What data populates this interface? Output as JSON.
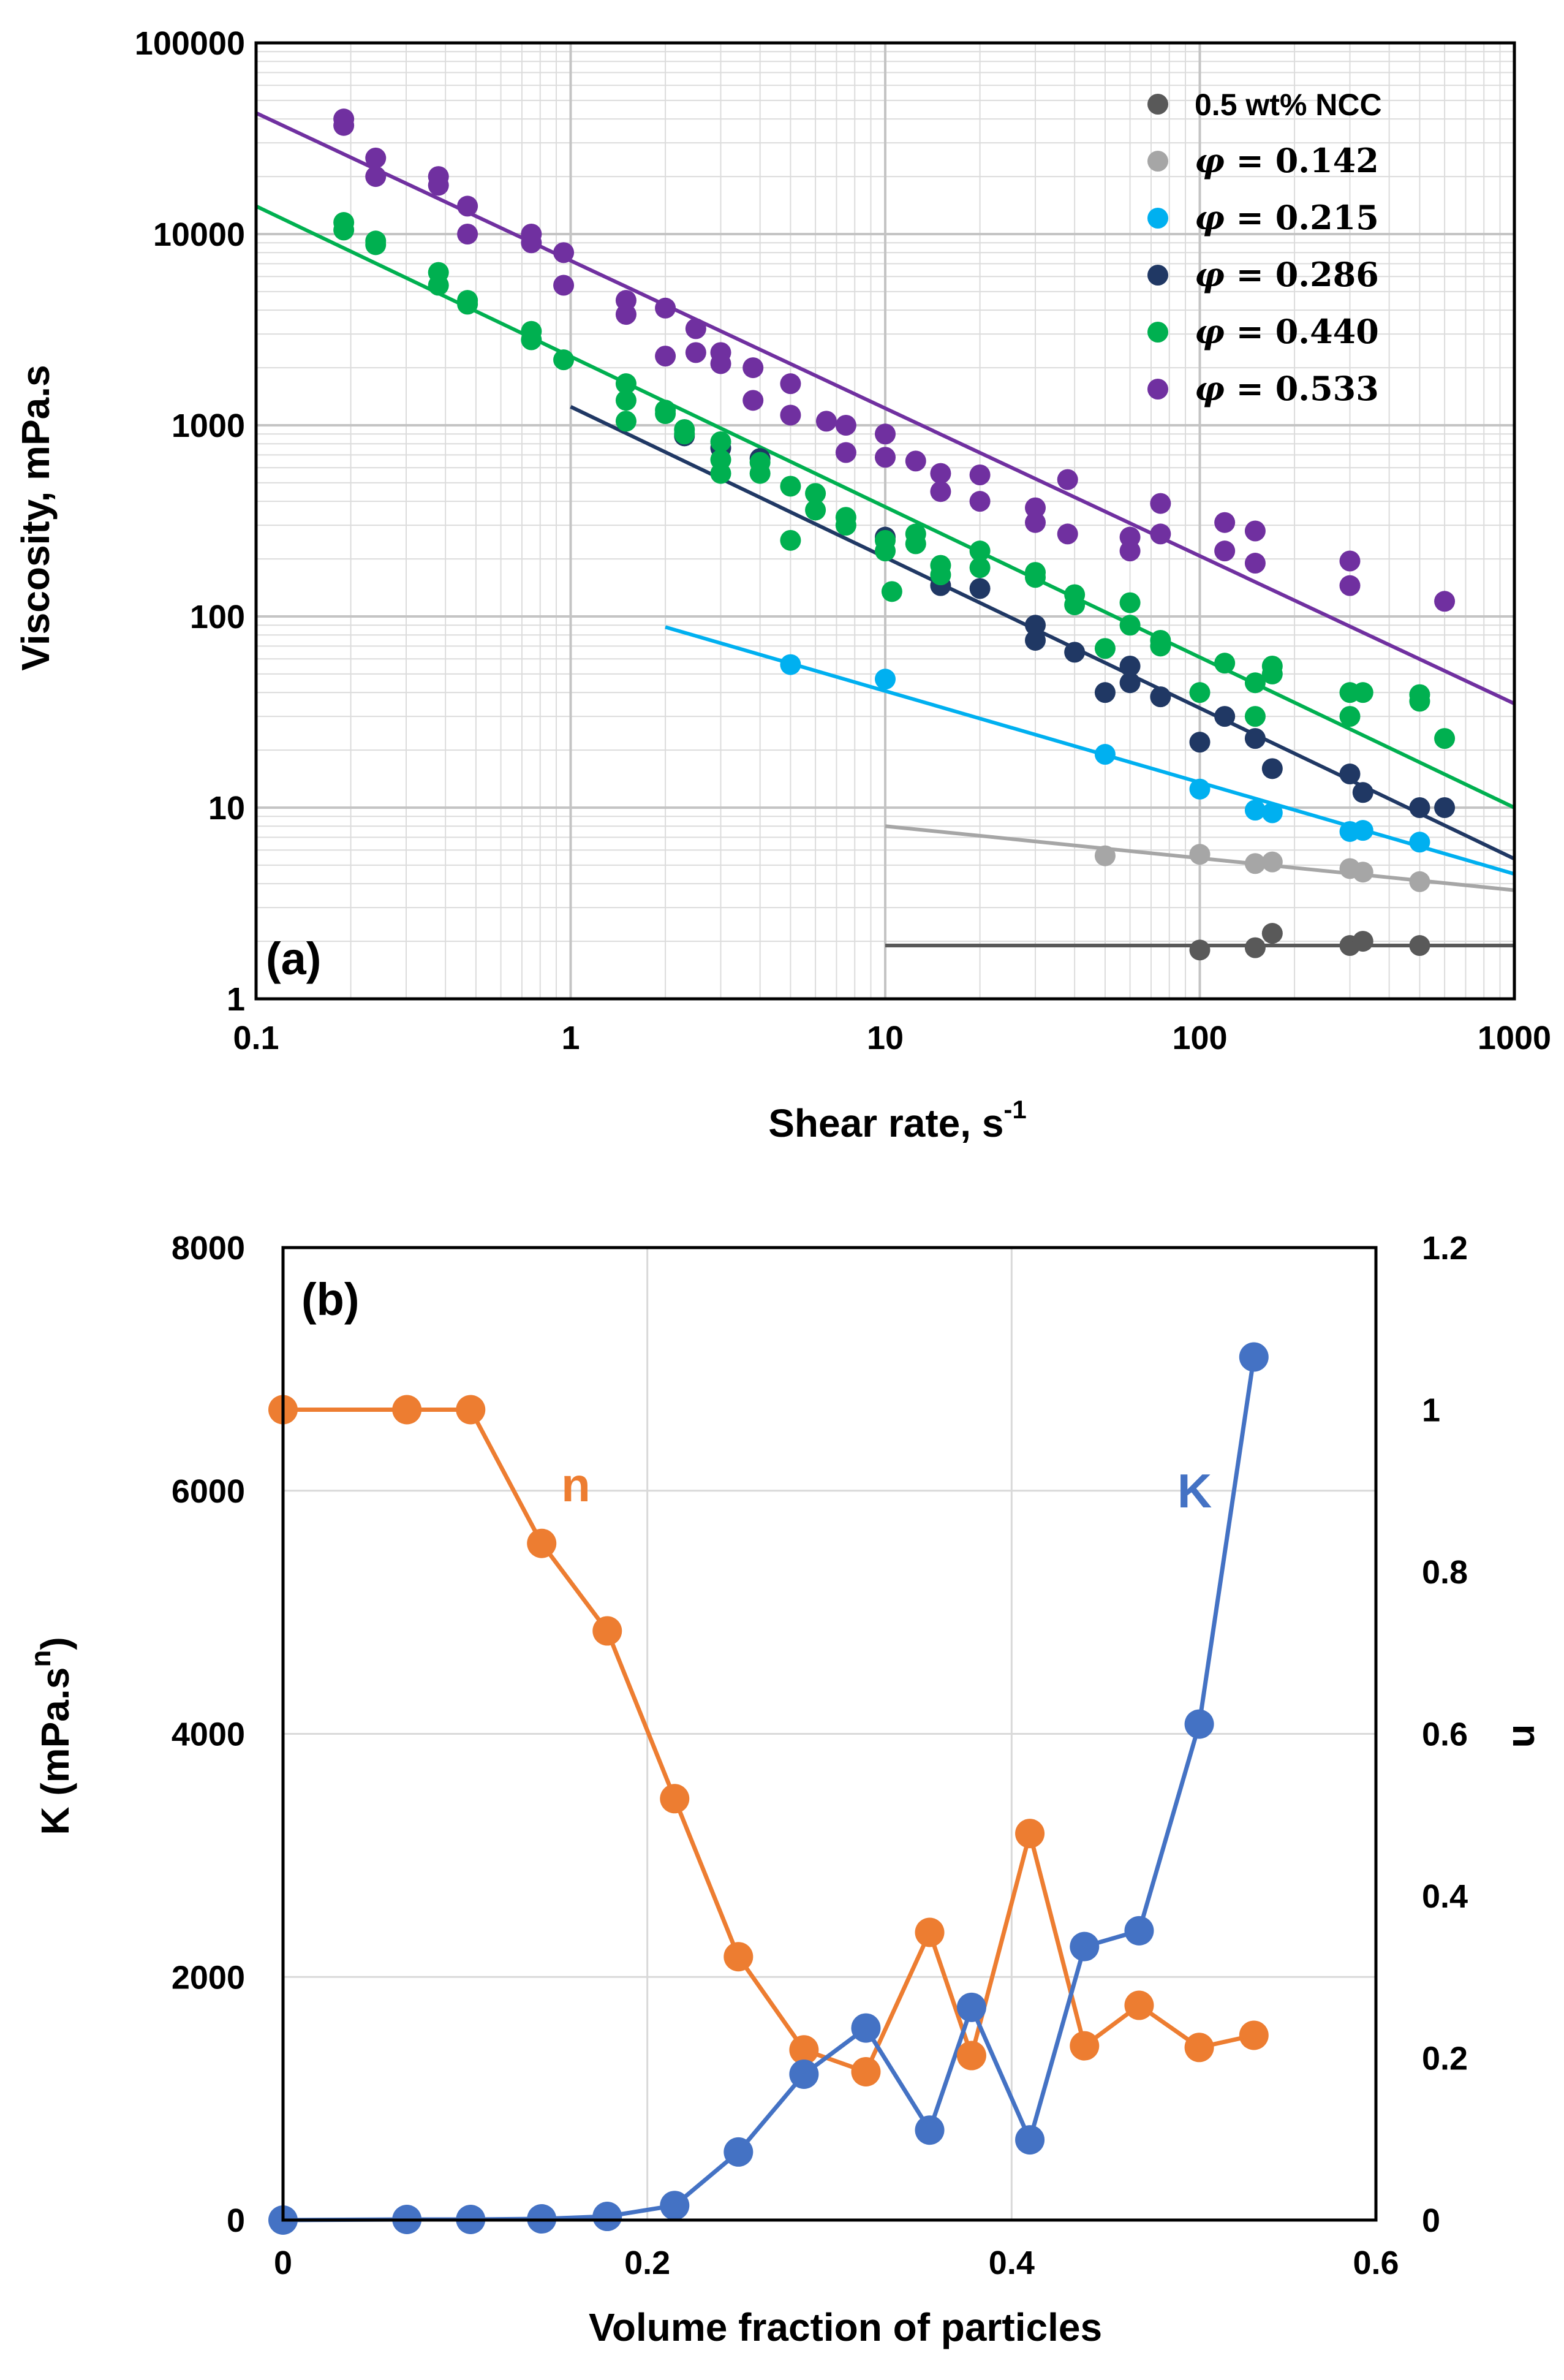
{
  "chart_data": [
    {
      "type": "scatter",
      "panel_label": "(a)",
      "xlabel": "Shear rate, s",
      "xlabel_sup": "-1",
      "ylabel": "Viscosity, mPa.s",
      "xscale": "log",
      "yscale": "log",
      "xlim": [
        0.1,
        1000
      ],
      "ylim": [
        1,
        100000
      ],
      "x_tick_labels": [
        "0.1",
        "1",
        "10",
        "100",
        "1000"
      ],
      "y_tick_labels": [
        "1",
        "10",
        "100",
        "1000",
        "10000",
        "100000"
      ],
      "grid": true,
      "legend_position": "top-right",
      "series": [
        {
          "name": "0.5 wt% NCC",
          "label_prefix": "",
          "label_value": "0.5 wt% NCC",
          "color": "#595959",
          "points": [
            [
              100,
              1.8
            ],
            [
              150,
              1.85
            ],
            [
              170,
              2.2
            ],
            [
              300,
              1.9
            ],
            [
              330,
              2.0
            ],
            [
              500,
              1.9
            ]
          ],
          "fit": [
            [
              10,
              1.9
            ],
            [
              1000,
              1.9
            ]
          ]
        },
        {
          "name": "φ = 0.142",
          "label_prefix": "φ",
          "label_value": " = 0.142",
          "color": "#a6a6a6",
          "points": [
            [
              50,
              5.6
            ],
            [
              100,
              5.7
            ],
            [
              150,
              5.1
            ],
            [
              170,
              5.2
            ],
            [
              300,
              4.8
            ],
            [
              330,
              4.6
            ],
            [
              500,
              4.1
            ]
          ],
          "fit": [
            [
              10,
              8
            ],
            [
              1000,
              3.7
            ]
          ]
        },
        {
          "name": "φ = 0.215",
          "label_prefix": "φ",
          "label_value": " = 0.215",
          "color": "#00b0f0",
          "points": [
            [
              5,
              56
            ],
            [
              10,
              47
            ],
            [
              50,
              19
            ],
            [
              100,
              12.5
            ],
            [
              150,
              9.7
            ],
            [
              170,
              9.4
            ],
            [
              300,
              7.5
            ],
            [
              330,
              7.6
            ],
            [
              500,
              6.6
            ]
          ],
          "fit": [
            [
              2,
              88
            ],
            [
              1000,
              4.5
            ]
          ]
        },
        {
          "name": "φ = 0.286",
          "label_prefix": "φ",
          "label_value": " = 0.286",
          "color": "#203864",
          "points": [
            [
              2.3,
              880
            ],
            [
              3,
              760
            ],
            [
              4,
              670
            ],
            [
              10,
              260
            ],
            [
              15,
              145
            ],
            [
              20,
              140
            ],
            [
              30,
              75
            ],
            [
              30,
              90
            ],
            [
              40,
              65
            ],
            [
              50,
              40
            ],
            [
              60,
              55
            ],
            [
              60,
              45
            ],
            [
              75,
              38
            ],
            [
              100,
              22
            ],
            [
              120,
              30
            ],
            [
              150,
              23
            ],
            [
              170,
              16
            ],
            [
              300,
              15
            ],
            [
              330,
              12
            ],
            [
              500,
              10
            ],
            [
              600,
              10
            ]
          ],
          "fit": [
            [
              1,
              1250
            ],
            [
              1000,
              5.4
            ]
          ]
        },
        {
          "name": "φ = 0.440",
          "label_prefix": "φ",
          "label_value": " = 0.440",
          "color": "#00b050",
          "points": [
            [
              0.19,
              11500
            ],
            [
              0.19,
              10500
            ],
            [
              0.24,
              9200
            ],
            [
              0.24,
              8800
            ],
            [
              0.38,
              6300
            ],
            [
              0.38,
              5400
            ],
            [
              0.47,
              4500
            ],
            [
              0.47,
              4300
            ],
            [
              0.75,
              3100
            ],
            [
              0.75,
              2800
            ],
            [
              0.95,
              2200
            ],
            [
              1.5,
              1650
            ],
            [
              1.5,
              1350
            ],
            [
              1.5,
              1050
            ],
            [
              2,
              1200
            ],
            [
              2,
              1150
            ],
            [
              2.3,
              950
            ],
            [
              2.3,
              900
            ],
            [
              3,
              820
            ],
            [
              3,
              660
            ],
            [
              3,
              560
            ],
            [
              4,
              640
            ],
            [
              4,
              560
            ],
            [
              5,
              480
            ],
            [
              5,
              250
            ],
            [
              6,
              440
            ],
            [
              6,
              360
            ],
            [
              7.5,
              330
            ],
            [
              7.5,
              300
            ],
            [
              10,
              250
            ],
            [
              10,
              220
            ],
            [
              10.5,
              135
            ],
            [
              12.5,
              270
            ],
            [
              12.5,
              240
            ],
            [
              15,
              185
            ],
            [
              15,
              165
            ],
            [
              20,
              220
            ],
            [
              20,
              180
            ],
            [
              30,
              170
            ],
            [
              30,
              160
            ],
            [
              40,
              130
            ],
            [
              40,
              115
            ],
            [
              50,
              68
            ],
            [
              60,
              118
            ],
            [
              60,
              90
            ],
            [
              75,
              75
            ],
            [
              75,
              70
            ],
            [
              100,
              40
            ],
            [
              120,
              57
            ],
            [
              150,
              45
            ],
            [
              150,
              30
            ],
            [
              170,
              55
            ],
            [
              170,
              50
            ],
            [
              300,
              40
            ],
            [
              300,
              30
            ],
            [
              330,
              40
            ],
            [
              500,
              39
            ],
            [
              500,
              36
            ],
            [
              600,
              23
            ]
          ],
          "fit": [
            [
              0.1,
              14000
            ],
            [
              1000,
              10
            ]
          ]
        },
        {
          "name": "φ = 0.533",
          "label_prefix": "φ",
          "label_value": " = 0.533",
          "color": "#7030a0",
          "points": [
            [
              0.19,
              40000
            ],
            [
              0.19,
              37000
            ],
            [
              0.24,
              25000
            ],
            [
              0.24,
              20000
            ],
            [
              0.38,
              20000
            ],
            [
              0.38,
              18000
            ],
            [
              0.47,
              14000
            ],
            [
              0.47,
              10000
            ],
            [
              0.75,
              10000
            ],
            [
              0.75,
              9000
            ],
            [
              0.95,
              8000
            ],
            [
              0.95,
              5400
            ],
            [
              1.5,
              4500
            ],
            [
              1.5,
              3800
            ],
            [
              2,
              4100
            ],
            [
              2,
              2300
            ],
            [
              2.5,
              3200
            ],
            [
              2.5,
              2400
            ],
            [
              3,
              2400
            ],
            [
              3,
              2100
            ],
            [
              3.8,
              2000
            ],
            [
              3.8,
              1350
            ],
            [
              5,
              1650
            ],
            [
              5,
              1130
            ],
            [
              6.5,
              1050
            ],
            [
              7.5,
              1000
            ],
            [
              7.5,
              720
            ],
            [
              10,
              900
            ],
            [
              10,
              680
            ],
            [
              12.5,
              650
            ],
            [
              15,
              560
            ],
            [
              15,
              450
            ],
            [
              20,
              550
            ],
            [
              20,
              400
            ],
            [
              30,
              370
            ],
            [
              30,
              310
            ],
            [
              38,
              520
            ],
            [
              38,
              270
            ],
            [
              60,
              260
            ],
            [
              60,
              220
            ],
            [
              75,
              390
            ],
            [
              75,
              270
            ],
            [
              120,
              310
            ],
            [
              120,
              220
            ],
            [
              150,
              280
            ],
            [
              150,
              190
            ],
            [
              300,
              195
            ],
            [
              300,
              145
            ],
            [
              600,
              120
            ]
          ],
          "fit": [
            [
              0.1,
              43000
            ],
            [
              1000,
              35
            ]
          ]
        }
      ]
    },
    {
      "type": "line",
      "panel_label": "(b)",
      "xlabel": "Volume fraction of particles",
      "ylabel_left": "K (mPa.s",
      "ylabel_left_sup": "n",
      "ylabel_left_close": ")",
      "ylabel_right": "n",
      "xlim": [
        0,
        0.6
      ],
      "ylim_left": [
        0,
        8000
      ],
      "ylim_right": [
        0,
        1.2
      ],
      "x_tick_labels": [
        "0",
        "0.2",
        "0.4",
        "0.6"
      ],
      "y_left_tick_labels": [
        "0",
        "2000",
        "4000",
        "6000",
        "8000"
      ],
      "y_right_tick_labels": [
        "0",
        "0.2",
        "0.4",
        "0.6",
        "0.8",
        "1",
        "1.2"
      ],
      "grid": true,
      "series": [
        {
          "name": "K",
          "axis": "left",
          "color": "#4472c4",
          "x": [
            0,
            0.068,
            0.103,
            0.142,
            0.178,
            0.215,
            0.25,
            0.286,
            0.32,
            0.355,
            0.378,
            0.41,
            0.44,
            0.47,
            0.503,
            0.533
          ],
          "values": [
            0,
            5,
            5,
            10,
            30,
            120,
            560,
            1200,
            1580,
            740,
            1750,
            660,
            2250,
            2380,
            4080,
            7100
          ]
        },
        {
          "name": "n",
          "axis": "right",
          "color": "#ed7d31",
          "x": [
            0,
            0.068,
            0.103,
            0.142,
            0.178,
            0.215,
            0.25,
            0.286,
            0.32,
            0.355,
            0.378,
            0.41,
            0.44,
            0.47,
            0.503,
            0.533
          ],
          "values": [
            1.0,
            1.0,
            1.0,
            0.835,
            0.727,
            0.52,
            0.325,
            0.21,
            0.183,
            0.355,
            0.203,
            0.477,
            0.215,
            0.265,
            0.213,
            0.228
          ]
        }
      ]
    }
  ]
}
